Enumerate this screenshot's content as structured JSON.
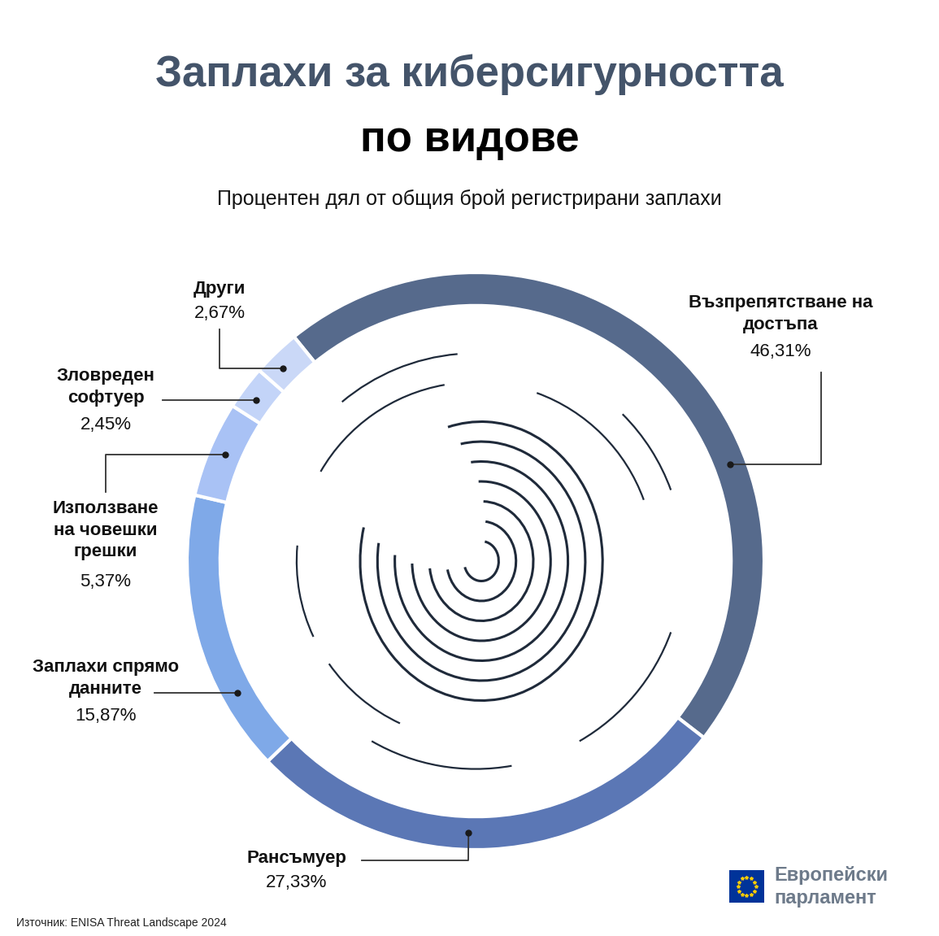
{
  "chart_data": {
    "type": "pie",
    "title": [
      "Заплахи за киберсигурността",
      "по видове"
    ],
    "subtitle": "Процентен дял от общия брой регистрирани заплахи",
    "categories": [
      "Възпрепятстване на достъпа",
      "Рансъмуер",
      "Заплахи спрямо данните",
      "Използване на човешки грешки",
      "Зловреден софтуер",
      "Други"
    ],
    "values": [
      46.31,
      27.33,
      15.87,
      5.37,
      2.45,
      2.67
    ],
    "value_labels": [
      "46,31%",
      "27,33%",
      "15,87%",
      "5,37%",
      "2,45%",
      "2,67%"
    ],
    "colors": [
      "#566a8c",
      "#5b77b5",
      "#7fa9e8",
      "#a9c2f5",
      "#c3d4f8",
      "#cad8f7"
    ],
    "data_labels": true,
    "source": "Източник: ENISA Threat Landscape 2024",
    "logo": [
      "Европейски",
      "парламент"
    ]
  }
}
